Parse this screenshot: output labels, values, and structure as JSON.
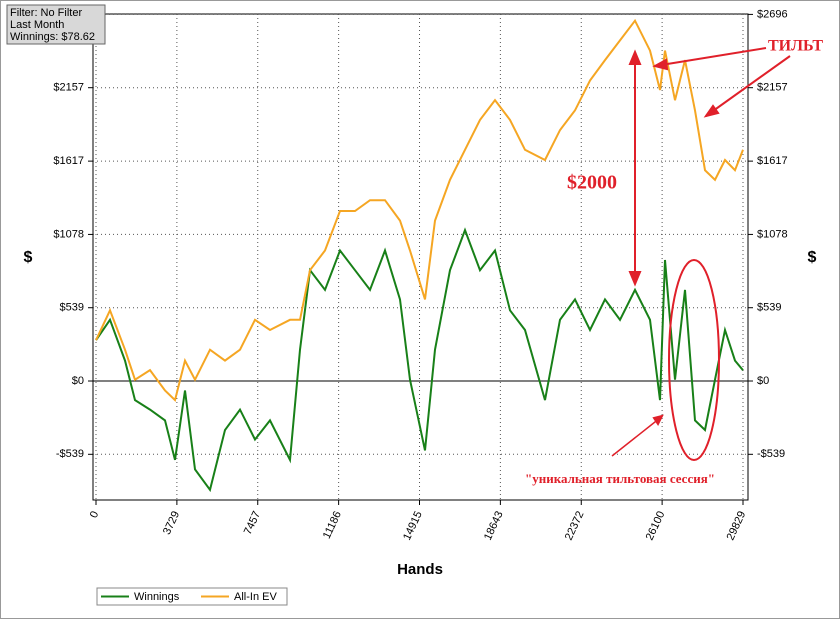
{
  "chart_data": {
    "type": "line",
    "info": [
      "Filter: No Filter",
      "Last Month",
      "Winnings: $78.62"
    ],
    "x_label": "Hands",
    "y_label": "$",
    "annotations": [
      "ТИЛЬТ",
      "$2000",
      "\"уникальная тильтовая сессия\""
    ],
    "x": [
      0,
      645,
      1337,
      1798,
      2490,
      3181,
      3642,
      4103,
      4564,
      5256,
      5947,
      6639,
      7330,
      8022,
      8944,
      9405,
      9866,
      10558,
      11249,
      11941,
      12632,
      13324,
      14015,
      14476,
      15168,
      15629,
      16320,
      17012,
      17703,
      18395,
      19086,
      19778,
      20700,
      21392,
      22083,
      22775,
      23466,
      24158,
      24849,
      25541,
      26002,
      26232,
      26693,
      27154,
      27615,
      28076,
      28537,
      28998,
      29459,
      29829
    ],
    "series": [
      {
        "name": "Winnings",
        "color": "#188018",
        "values": [
          300,
          450,
          150,
          -140,
          -210,
          -290,
          -580,
          -70,
          -650,
          -800,
          -360,
          -210,
          -430,
          -290,
          -580,
          230,
          815,
          670,
          960,
          815,
          670,
          960,
          600,
          10,
          -510,
          230,
          815,
          1110,
          815,
          960,
          520,
          375,
          -140,
          450,
          600,
          375,
          600,
          450,
          670,
          450,
          -140,
          890,
          10,
          670,
          -290,
          -360,
          10,
          375,
          150,
          79
        ]
      },
      {
        "name": "All-In EV",
        "color": "#f5a623",
        "values": [
          300,
          520,
          230,
          10,
          80,
          -70,
          -140,
          150,
          10,
          230,
          150,
          230,
          450,
          375,
          450,
          450,
          815,
          960,
          1250,
          1250,
          1330,
          1330,
          1180,
          960,
          600,
          1180,
          1480,
          1700,
          1920,
          2065,
          1920,
          1700,
          1625,
          1845,
          1990,
          2210,
          2360,
          2505,
          2650,
          2430,
          2140,
          2430,
          2065,
          2360,
          1990,
          1550,
          1480,
          1625,
          1550,
          1700
        ]
      }
    ],
    "xlim": [
      0,
      29829
    ],
    "xticks": [
      0,
      3729,
      7457,
      11186,
      14915,
      18643,
      22372,
      26100,
      29829
    ],
    "ylim": [
      -875,
      2696
    ],
    "yticks": [
      {
        "value": -539,
        "label": "-$539"
      },
      {
        "value": 0,
        "label": "$0"
      },
      {
        "value": 539,
        "label": "$539"
      },
      {
        "value": 1078,
        "label": "$1078"
      },
      {
        "value": 1617,
        "label": "$1617"
      },
      {
        "value": 2157,
        "label": "$2157"
      },
      {
        "value": 2696,
        "label": "$2696"
      }
    ],
    "grid": true
  }
}
